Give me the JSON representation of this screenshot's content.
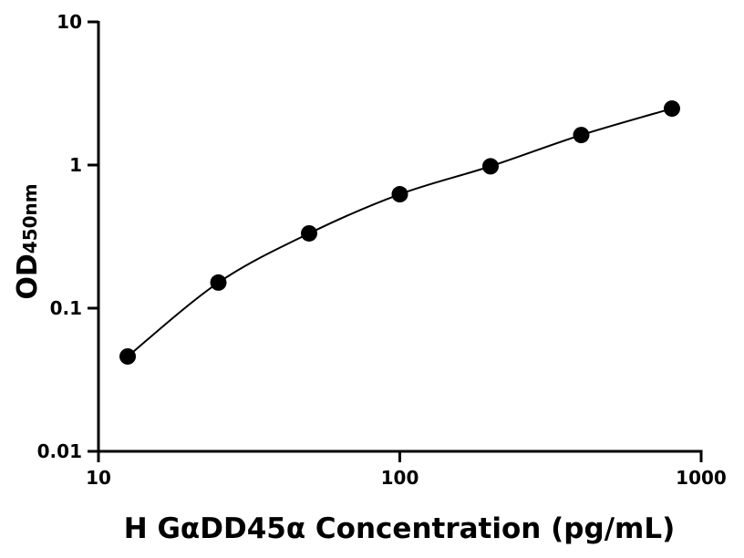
{
  "chart_data": {
    "type": "scatter",
    "x_label": "H GαDD45α Concentration (pg/mL)",
    "y_label": "OD",
    "y_label_sub": "450nm",
    "x": [
      12.5,
      25,
      50,
      100,
      200,
      400,
      800
    ],
    "values": [
      0.046,
      0.151,
      0.333,
      0.625,
      0.98,
      1.62,
      2.48
    ],
    "color": "#000000",
    "xlog": true,
    "ylog": true,
    "xlim": [
      10,
      1000
    ],
    "xticks": [
      10,
      100,
      1000
    ],
    "ylim": [
      0.01,
      10
    ],
    "yticks": [
      0.01,
      0.1,
      1,
      10
    ]
  }
}
